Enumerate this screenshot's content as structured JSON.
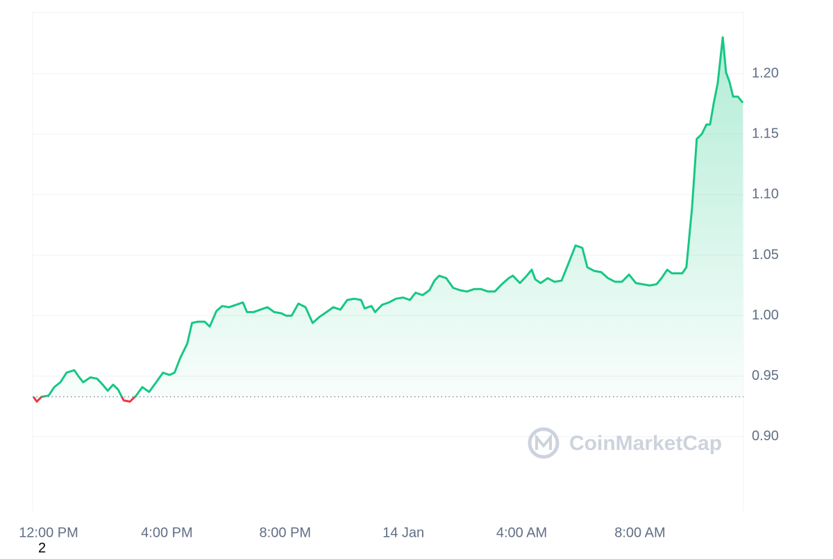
{
  "chart_data": {
    "type": "line",
    "x": [
      -0.51,
      -0.4,
      -0.24,
      0,
      0.19,
      0.4,
      0.61,
      0.87,
      1.01,
      1.17,
      1.41,
      1.64,
      1.83,
      2.0,
      2.18,
      2.35,
      2.54,
      2.75,
      2.96,
      3.17,
      3.4,
      3.64,
      3.87,
      4.09,
      4.26,
      4.45,
      4.69,
      4.85,
      5.04,
      5.28,
      5.45,
      5.68,
      5.87,
      6.1,
      6.34,
      6.57,
      6.71,
      6.93,
      7.16,
      7.4,
      7.63,
      7.87,
      8.03,
      8.22,
      8.45,
      8.69,
      8.93,
      9.16,
      9.4,
      9.63,
      9.87,
      10.1,
      10.34,
      10.57,
      10.69,
      10.92,
      11.04,
      11.28,
      11.51,
      11.75,
      11.99,
      12.22,
      12.41,
      12.65,
      12.88,
      13.05,
      13.21,
      13.45,
      13.68,
      13.92,
      14.15,
      14.39,
      14.62,
      14.86,
      15.09,
      15.33,
      15.56,
      15.7,
      15.94,
      16.17,
      16.34,
      16.46,
      16.64,
      16.88,
      17.11,
      17.35,
      17.58,
      17.82,
      18.05,
      18.22,
      18.45,
      18.69,
      18.92,
      19.16,
      19.39,
      19.63,
      19.86,
      20.09,
      20.33,
      20.56,
      20.73,
      20.92,
      21.08,
      21.27,
      21.43,
      21.57,
      21.76,
      21.92,
      22.09,
      22.25,
      22.37,
      22.49,
      22.63,
      22.8,
      22.91,
      23.03,
      23.15,
      23.31,
      23.48
    ],
    "values": [
      0.933,
      0.929,
      0.933,
      0.934,
      0.941,
      0.945,
      0.953,
      0.955,
      0.95,
      0.945,
      0.949,
      0.948,
      0.943,
      0.938,
      0.943,
      0.939,
      0.93,
      0.929,
      0.934,
      0.941,
      0.937,
      0.945,
      0.953,
      0.951,
      0.953,
      0.965,
      0.977,
      0.994,
      0.995,
      0.995,
      0.991,
      1.004,
      1.008,
      1.007,
      1.009,
      1.011,
      1.003,
      1.003,
      1.005,
      1.007,
      1.003,
      1.002,
      1.0,
      1.0,
      1.01,
      1.007,
      0.994,
      0.999,
      1.003,
      1.007,
      1.005,
      1.013,
      1.014,
      1.013,
      1.006,
      1.008,
      1.003,
      1.009,
      1.011,
      1.014,
      1.015,
      1.013,
      1.019,
      1.017,
      1.021,
      1.029,
      1.033,
      1.031,
      1.023,
      1.021,
      1.02,
      1.022,
      1.022,
      1.02,
      1.02,
      1.026,
      1.031,
      1.033,
      1.027,
      1.033,
      1.038,
      1.03,
      1.027,
      1.031,
      1.028,
      1.029,
      1.043,
      1.058,
      1.056,
      1.04,
      1.037,
      1.036,
      1.031,
      1.028,
      1.028,
      1.034,
      1.027,
      1.026,
      1.025,
      1.026,
      1.031,
      1.038,
      1.035,
      1.035,
      1.035,
      1.04,
      1.089,
      1.146,
      1.15,
      1.158,
      1.158,
      1.175,
      1.192,
      1.23,
      1.201,
      1.193,
      1.181,
      1.181,
      1.176
    ],
    "baseline": 0.933,
    "up_color": "#16c784",
    "down_color": "#ea3943",
    "xlim": [
      -0.54,
      23.5
    ],
    "xticks": [
      {
        "value": 0,
        "label": "12:00 PM"
      },
      {
        "value": 4,
        "label": "4:00 PM"
      },
      {
        "value": 8,
        "label": "8:00 PM"
      },
      {
        "value": 12,
        "label": "14 Jan"
      },
      {
        "value": 16,
        "label": "4:00 AM"
      },
      {
        "value": 20,
        "label": "8:00 AM"
      }
    ],
    "ylim": [
      0.838,
      1.2505
    ],
    "yticks": [
      {
        "value": 0.9,
        "label": "0.90"
      },
      {
        "value": 0.95,
        "label": "0.95"
      },
      {
        "value": 1.0,
        "label": "1.00"
      },
      {
        "value": 1.05,
        "label": "1.05"
      },
      {
        "value": 1.1,
        "label": "1.10"
      },
      {
        "value": 1.15,
        "label": "1.15"
      },
      {
        "value": 1.2,
        "label": "1.20"
      }
    ],
    "grid": true,
    "watermark": "CoinMarketCap",
    "footnote": "2"
  }
}
